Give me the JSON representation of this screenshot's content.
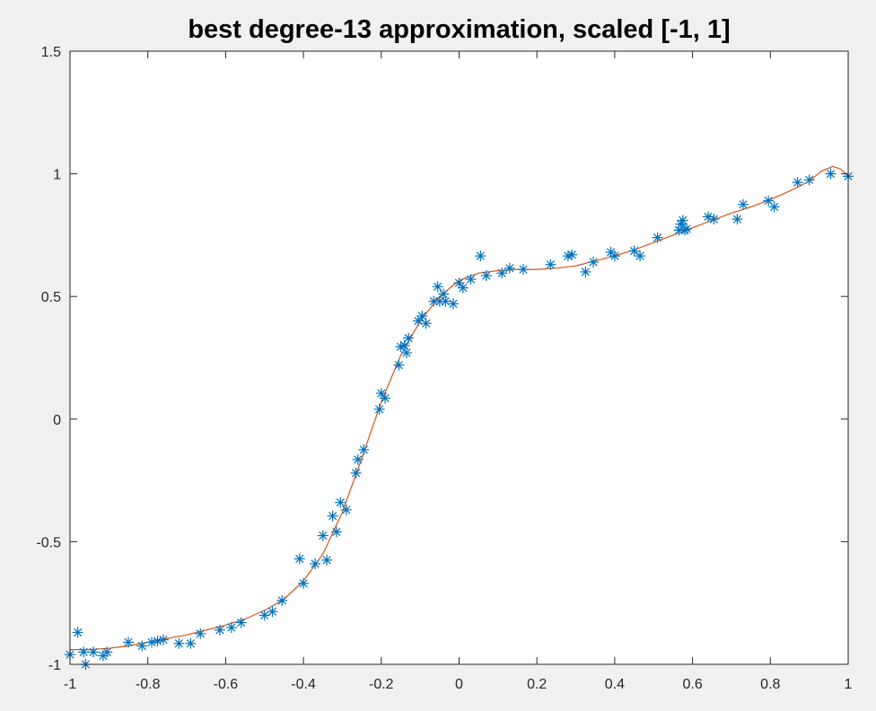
{
  "chart_data": {
    "type": "scatter",
    "title": "best degree-13 approximation, scaled [-1, 1]",
    "xlabel": "",
    "ylabel": "",
    "xlim": [
      -1,
      1
    ],
    "ylim": [
      -1,
      1.5
    ],
    "xticks": [
      -1,
      -0.8,
      -0.6,
      -0.4,
      -0.2,
      0,
      0.2,
      0.4,
      0.6,
      0.8,
      1
    ],
    "xtick_labels": [
      "-1",
      "-0.8",
      "-0.6",
      "-0.4",
      "-0.2",
      "0",
      "0.2",
      "0.4",
      "0.6",
      "0.8",
      "1"
    ],
    "yticks": [
      -1,
      -0.5,
      0,
      0.5,
      1,
      1.5
    ],
    "ytick_labels": [
      "-1",
      "-0.5",
      "0",
      "0.5",
      "1",
      "1.5"
    ],
    "grid": false,
    "colors": {
      "marker": "#0072bd",
      "curve": "#d95319",
      "axes_bg": "#ffffff",
      "figure_bg": "#f0f0f0"
    },
    "series": [
      {
        "style": "markers-asterisk",
        "x": [
          -1.0,
          -0.98,
          -0.965,
          -0.96,
          -0.94,
          -0.915,
          -0.905,
          -0.85,
          -0.815,
          -0.79,
          -0.775,
          -0.76,
          -0.72,
          -0.69,
          -0.665,
          -0.615,
          -0.585,
          -0.56,
          -0.5,
          -0.48,
          -0.455,
          -0.41,
          -0.4,
          -0.37,
          -0.35,
          -0.34,
          -0.325,
          -0.315,
          -0.305,
          -0.29,
          -0.265,
          -0.26,
          -0.245,
          -0.205,
          -0.2,
          -0.19,
          -0.155,
          -0.15,
          -0.14,
          -0.135,
          -0.13,
          -0.105,
          -0.095,
          -0.085,
          -0.065,
          -0.055,
          -0.05,
          -0.04,
          -0.035,
          -0.015,
          0.0,
          0.01,
          0.03,
          0.055,
          0.07,
          0.11,
          0.13,
          0.165,
          0.235,
          0.28,
          0.29,
          0.325,
          0.345,
          0.39,
          0.4,
          0.45,
          0.465,
          0.51,
          0.565,
          0.57,
          0.575,
          0.58,
          0.585,
          0.64,
          0.655,
          0.715,
          0.73,
          0.795,
          0.81,
          0.87,
          0.9,
          0.955,
          1.0
        ],
        "y": [
          -0.96,
          -0.87,
          -0.95,
          -1.0,
          -0.95,
          -0.965,
          -0.95,
          -0.91,
          -0.925,
          -0.91,
          -0.905,
          -0.9,
          -0.915,
          -0.915,
          -0.875,
          -0.86,
          -0.85,
          -0.83,
          -0.8,
          -0.785,
          -0.74,
          -0.57,
          -0.67,
          -0.59,
          -0.475,
          -0.575,
          -0.395,
          -0.46,
          -0.34,
          -0.37,
          -0.22,
          -0.165,
          -0.125,
          0.04,
          0.105,
          0.085,
          0.22,
          0.295,
          0.3,
          0.27,
          0.33,
          0.4,
          0.42,
          0.39,
          0.48,
          0.54,
          0.48,
          0.51,
          0.48,
          0.47,
          0.555,
          0.535,
          0.57,
          0.665,
          0.585,
          0.595,
          0.615,
          0.61,
          0.63,
          0.665,
          0.67,
          0.6,
          0.64,
          0.68,
          0.665,
          0.685,
          0.665,
          0.74,
          0.77,
          0.795,
          0.81,
          0.77,
          0.775,
          0.825,
          0.815,
          0.815,
          0.875,
          0.89,
          0.865,
          0.965,
          0.975,
          1.0,
          0.99
        ]
      },
      {
        "style": "line",
        "x": [
          -1.0,
          -0.95,
          -0.9,
          -0.85,
          -0.8,
          -0.75,
          -0.7,
          -0.65,
          -0.6,
          -0.55,
          -0.5,
          -0.45,
          -0.4,
          -0.35,
          -0.3,
          -0.25,
          -0.2,
          -0.15,
          -0.1,
          -0.05,
          0.0,
          0.05,
          0.1,
          0.15,
          0.2,
          0.25,
          0.3,
          0.35,
          0.4,
          0.45,
          0.5,
          0.55,
          0.6,
          0.65,
          0.7,
          0.75,
          0.8,
          0.85,
          0.9,
          0.93,
          0.96,
          0.98,
          1.0
        ],
        "y": [
          -0.94,
          -0.94,
          -0.935,
          -0.925,
          -0.91,
          -0.895,
          -0.88,
          -0.86,
          -0.84,
          -0.815,
          -0.78,
          -0.735,
          -0.66,
          -0.55,
          -0.38,
          -0.16,
          0.07,
          0.26,
          0.4,
          0.5,
          0.565,
          0.595,
          0.605,
          0.61,
          0.61,
          0.615,
          0.625,
          0.645,
          0.665,
          0.69,
          0.72,
          0.75,
          0.78,
          0.81,
          0.84,
          0.865,
          0.895,
          0.93,
          0.97,
          1.01,
          1.03,
          1.02,
          0.99
        ]
      }
    ]
  }
}
